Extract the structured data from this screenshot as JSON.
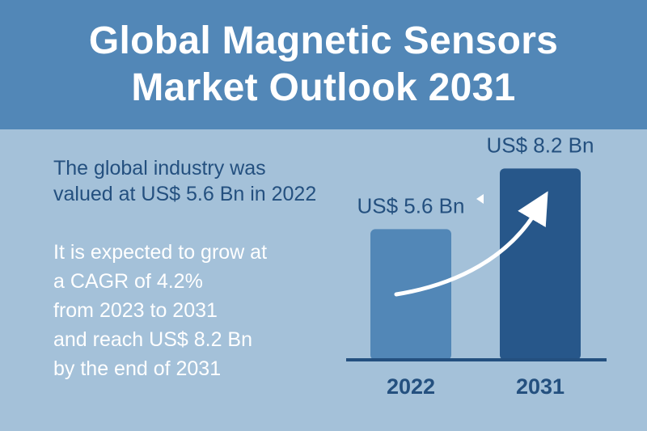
{
  "header": {
    "title_line1": "Global Magnetic Sensors",
    "title_line2": "Market Outlook 2031"
  },
  "intro": {
    "line1": "The global industry was",
    "line2": "valued at US$ 5.6 Bn in 2022"
  },
  "growth": {
    "line1": "It is expected to grow at",
    "line2": "a CAGR of 4.2%",
    "line3": "from 2023 to 2031",
    "line4": "and reach US$ 8.2 Bn",
    "line5": "by the end of 2031"
  },
  "colors": {
    "background": "#a4c1d9",
    "header": "#5287b7",
    "bar_2022": "#5287b7",
    "bar_2031": "#27578a",
    "text_dark": "#24507f",
    "arrow": "#ffffff"
  },
  "chart_data": {
    "type": "bar",
    "categories": [
      "2022",
      "2031"
    ],
    "values": [
      5.6,
      8.2
    ],
    "data_labels": [
      "US$ 5.6 Bn",
      "US$ 8.2 Bn"
    ],
    "title": "",
    "xlabel": "",
    "ylabel": "",
    "ylim": [
      0,
      8.7
    ],
    "grid": false,
    "legend": "none",
    "annotation": "growth-arrow"
  }
}
